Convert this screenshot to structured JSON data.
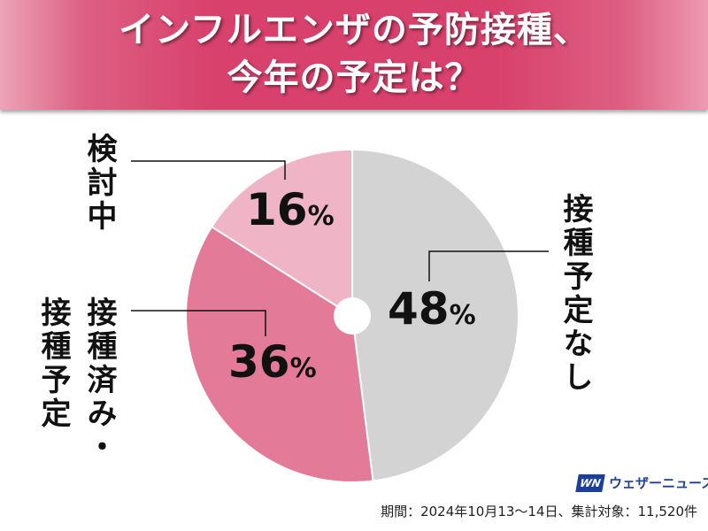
{
  "header": {
    "line1": "インフルエンザの予防接種、",
    "line2": "今年の予定は？"
  },
  "chart_data": {
    "type": "pie",
    "title": "インフルエンザの予防接種、今年の予定は？",
    "categories": [
      "接種予定なし",
      "接種済み・接種予定",
      "検討中"
    ],
    "values": [
      48,
      36,
      16
    ],
    "unit": "%",
    "colors": [
      "#d3d3d3",
      "#e37a98",
      "#efb4c6"
    ],
    "labels": [
      {
        "name": "接種予定なし",
        "value_text": "48",
        "unit": "%"
      },
      {
        "name1": "接種済み・",
        "name2": "接種予定",
        "value_text": "36",
        "unit": "%"
      },
      {
        "name": "検討中",
        "value_text": "16",
        "unit": "%"
      }
    ]
  },
  "logo": {
    "mark": "WN",
    "text": "ウェザーニュース"
  },
  "footnote": "期間：2024年10月13〜14日、集計対象：11,520件"
}
